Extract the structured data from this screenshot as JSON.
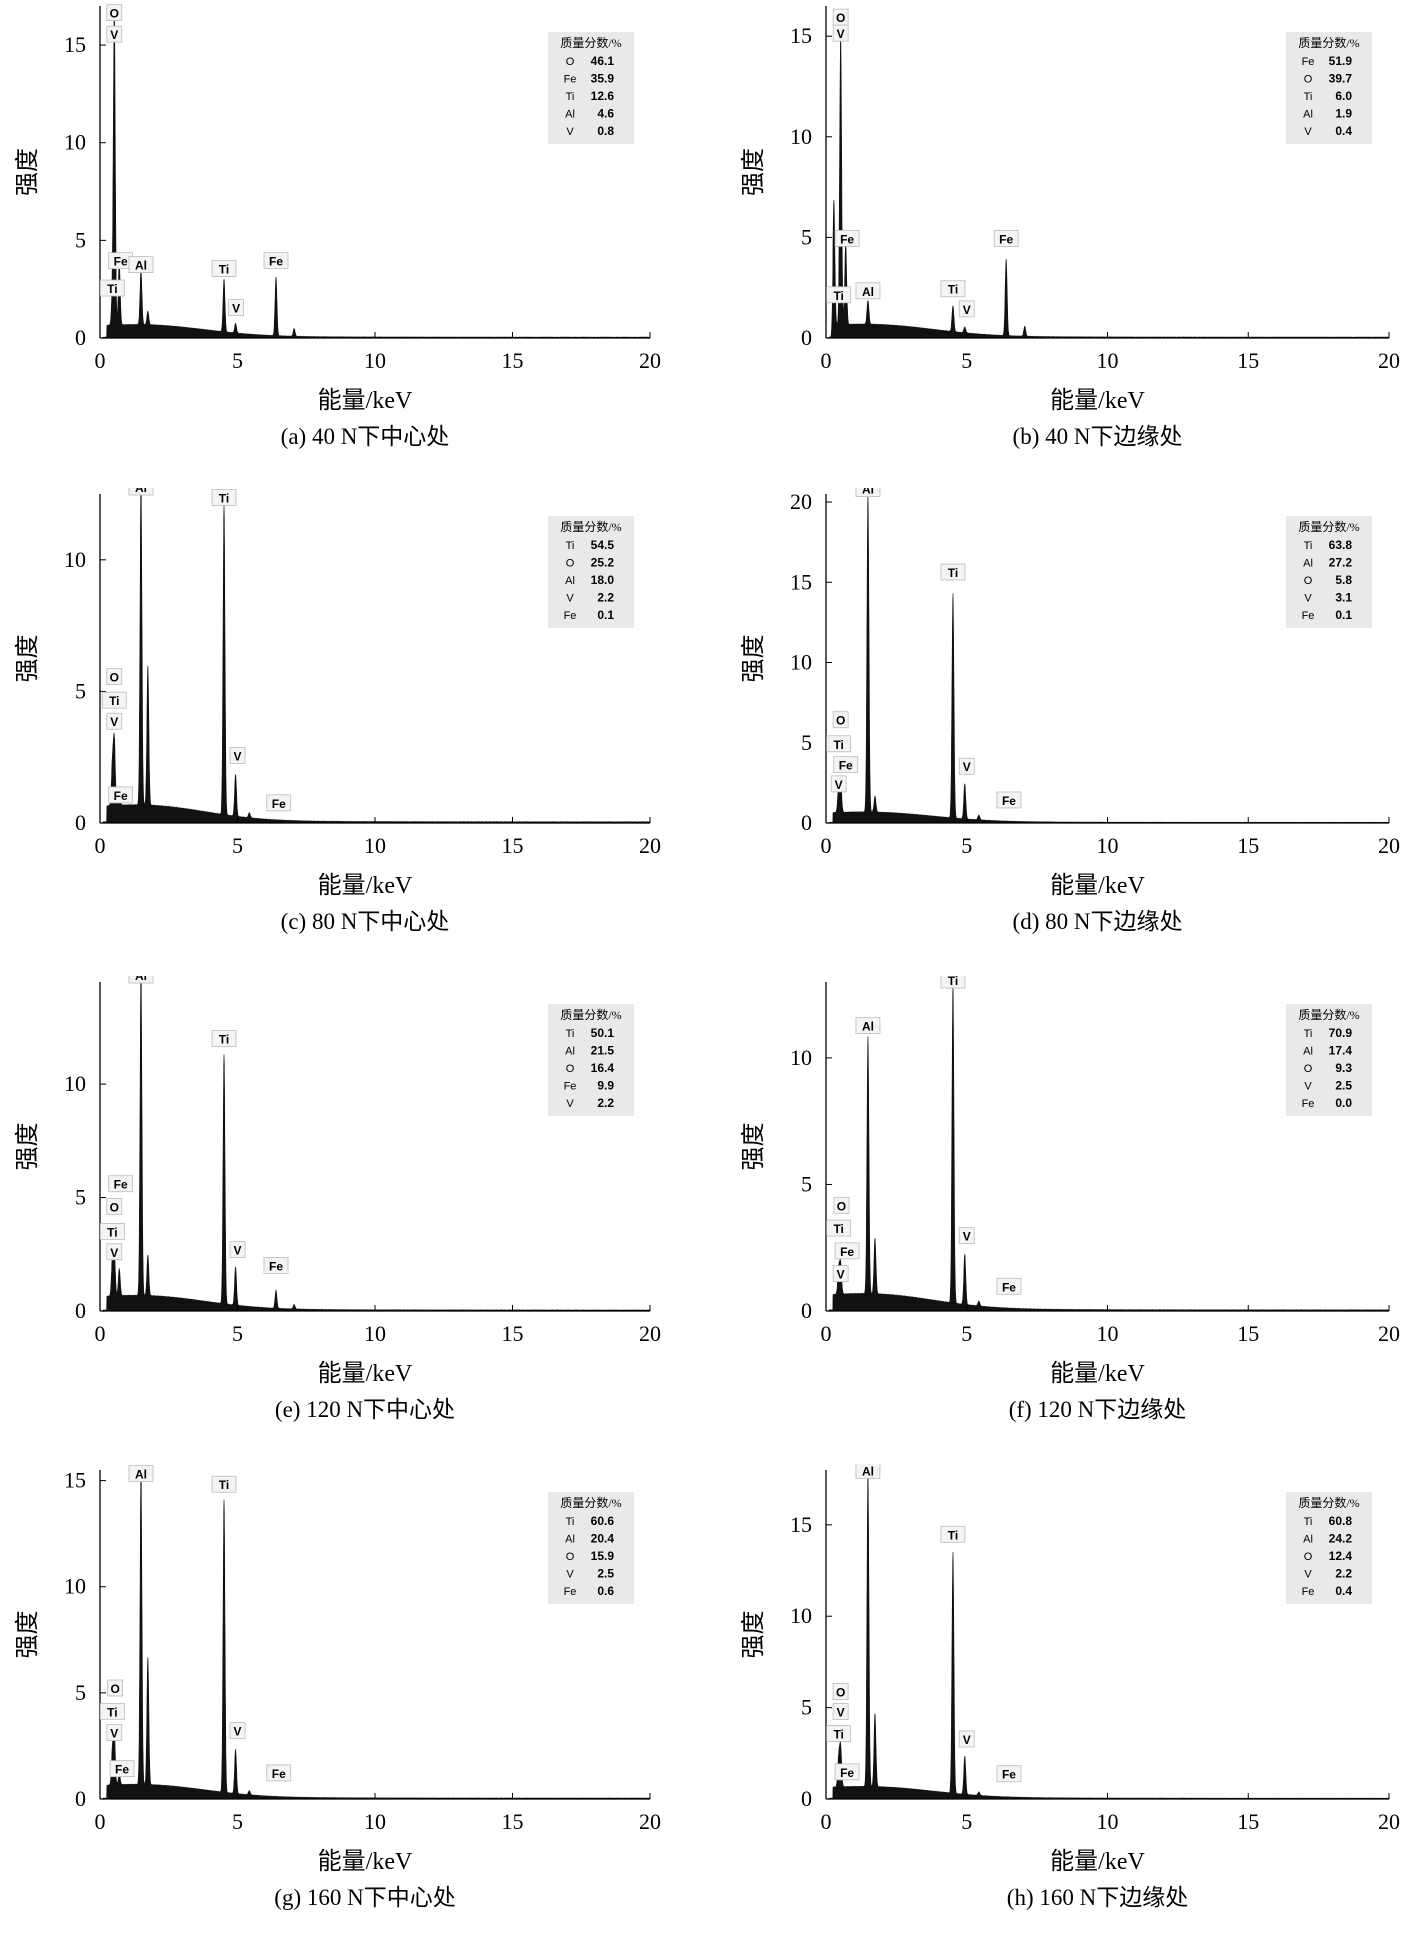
{
  "common": {
    "xlabel": "能量/keV",
    "ylabel": "强度",
    "legend_title": "质量分数/%",
    "xticks": [
      0,
      5,
      10,
      15,
      20
    ],
    "xlim": [
      0,
      20
    ]
  },
  "chart_data": [
    {
      "type": "line",
      "caption": "(a) 40 N下中心处",
      "ylim": [
        0,
        17
      ],
      "yticks": [
        0,
        5,
        10,
        15
      ],
      "peaks": [
        [
          0.45,
          1.5
        ],
        [
          0.52,
          16
        ],
        [
          0.7,
          3.2
        ],
        [
          1.49,
          2.8
        ],
        [
          1.74,
          0.7
        ],
        [
          4.51,
          2.7
        ],
        [
          4.93,
          0.5
        ],
        [
          6.4,
          3.0
        ],
        [
          7.06,
          0.4
        ]
      ],
      "labels": [
        {
          "text": "O",
          "x": 0.52,
          "y": 16.3
        },
        {
          "text": "V",
          "x": 0.52,
          "y": 15.2
        },
        {
          "text": "Fe",
          "x": 0.75,
          "y": 3.6
        },
        {
          "text": "Ti",
          "x": 0.45,
          "y": 2.2
        },
        {
          "text": "Al",
          "x": 1.49,
          "y": 3.4
        },
        {
          "text": "Ti",
          "x": 4.51,
          "y": 3.2
        },
        {
          "text": "V",
          "x": 4.95,
          "y": 1.2
        },
        {
          "text": "Fe",
          "x": 6.4,
          "y": 3.6
        }
      ],
      "legend": [
        [
          "O",
          "46.1"
        ],
        [
          "Fe",
          "35.9"
        ],
        [
          "Ti",
          "12.6"
        ],
        [
          "Al",
          "4.6"
        ],
        [
          "V",
          "0.8"
        ]
      ]
    },
    {
      "type": "line",
      "caption": "(b) 40 N下边缘处",
      "ylim": [
        0,
        16.5
      ],
      "yticks": [
        0,
        5,
        10,
        15
      ],
      "peaks": [
        [
          0.28,
          6.2
        ],
        [
          0.52,
          14.5
        ],
        [
          0.7,
          4.0
        ],
        [
          1.49,
          1.2
        ],
        [
          4.51,
          1.3
        ],
        [
          4.93,
          0.3
        ],
        [
          6.4,
          3.8
        ],
        [
          7.06,
          0.5
        ]
      ],
      "labels": [
        {
          "text": "O",
          "x": 0.52,
          "y": 15.6
        },
        {
          "text": "V",
          "x": 0.52,
          "y": 14.8
        },
        {
          "text": "Fe",
          "x": 0.75,
          "y": 4.6
        },
        {
          "text": "Ti",
          "x": 0.45,
          "y": 1.8
        },
        {
          "text": "Al",
          "x": 1.49,
          "y": 2.0
        },
        {
          "text": "Ti",
          "x": 4.51,
          "y": 2.1
        },
        {
          "text": "V",
          "x": 5.0,
          "y": 1.1
        },
        {
          "text": "Fe",
          "x": 6.4,
          "y": 4.6
        }
      ],
      "legend": [
        [
          "Fe",
          "51.9"
        ],
        [
          "O",
          "39.7"
        ],
        [
          "Ti",
          "6.0"
        ],
        [
          "Al",
          "1.9"
        ],
        [
          "V",
          "0.4"
        ]
      ]
    },
    {
      "type": "line",
      "caption": "(c) 80 N下中心处",
      "ylim": [
        0,
        12.5
      ],
      "yticks": [
        0,
        5,
        10
      ],
      "peaks": [
        [
          0.45,
          1.6
        ],
        [
          0.52,
          2.5
        ],
        [
          0.7,
          0.6
        ],
        [
          1.49,
          12.3
        ],
        [
          1.74,
          5.3
        ],
        [
          4.51,
          11.8
        ],
        [
          4.93,
          1.6
        ],
        [
          5.43,
          0.2
        ]
      ],
      "labels": [
        {
          "text": "Al",
          "x": 1.49,
          "y": 12.5
        },
        {
          "text": "Ti",
          "x": 4.51,
          "y": 12.1
        },
        {
          "text": "O",
          "x": 0.52,
          "y": 5.3
        },
        {
          "text": "Ti",
          "x": 0.52,
          "y": 4.4
        },
        {
          "text": "V",
          "x": 0.52,
          "y": 3.6
        },
        {
          "text": "Fe",
          "x": 0.75,
          "y": 0.8
        },
        {
          "text": "V",
          "x": 5.0,
          "y": 2.3
        },
        {
          "text": "Fe",
          "x": 6.5,
          "y": 0.5
        }
      ],
      "legend": [
        [
          "Ti",
          "54.5"
        ],
        [
          "O",
          "25.2"
        ],
        [
          "Al",
          "18.0"
        ],
        [
          "V",
          "2.2"
        ],
        [
          "Fe",
          "0.1"
        ]
      ]
    },
    {
      "type": "line",
      "caption": "(d) 80 N下边缘处",
      "ylim": [
        0,
        20.5
      ],
      "yticks": [
        0,
        5,
        10,
        15,
        20
      ],
      "peaks": [
        [
          0.45,
          1.6
        ],
        [
          0.52,
          2.0
        ],
        [
          1.49,
          20
        ],
        [
          1.74,
          1.0
        ],
        [
          4.51,
          14
        ],
        [
          4.93,
          2.2
        ],
        [
          5.43,
          0.3
        ]
      ],
      "labels": [
        {
          "text": "Al",
          "x": 1.49,
          "y": 20.4
        },
        {
          "text": "Ti",
          "x": 4.51,
          "y": 15.2
        },
        {
          "text": "O",
          "x": 0.52,
          "y": 6.0
        },
        {
          "text": "Ti",
          "x": 0.45,
          "y": 4.5
        },
        {
          "text": "Fe",
          "x": 0.7,
          "y": 3.2
        },
        {
          "text": "V",
          "x": 0.45,
          "y": 2.0
        },
        {
          "text": "V",
          "x": 5.0,
          "y": 3.1
        },
        {
          "text": "Fe",
          "x": 6.5,
          "y": 1.0
        }
      ],
      "legend": [
        [
          "Ti",
          "63.8"
        ],
        [
          "Al",
          "27.2"
        ],
        [
          "O",
          "5.8"
        ],
        [
          "V",
          "3.1"
        ],
        [
          "Fe",
          "0.1"
        ]
      ]
    },
    {
      "type": "line",
      "caption": "(e) 120 N下中心处",
      "ylim": [
        0,
        14.5
      ],
      "yticks": [
        0,
        5,
        10
      ],
      "peaks": [
        [
          0.45,
          1.6
        ],
        [
          0.52,
          2.0
        ],
        [
          0.7,
          1.2
        ],
        [
          1.49,
          14.3
        ],
        [
          1.74,
          1.8
        ],
        [
          4.51,
          11
        ],
        [
          4.93,
          1.7
        ],
        [
          6.4,
          0.8
        ],
        [
          7.06,
          0.2
        ]
      ],
      "labels": [
        {
          "text": "Al",
          "x": 1.49,
          "y": 14.5
        },
        {
          "text": "Ti",
          "x": 4.51,
          "y": 11.7
        },
        {
          "text": "Fe",
          "x": 0.75,
          "y": 5.3
        },
        {
          "text": "O",
          "x": 0.52,
          "y": 4.3
        },
        {
          "text": "Ti",
          "x": 0.45,
          "y": 3.2
        },
        {
          "text": "V",
          "x": 0.52,
          "y": 2.3
        },
        {
          "text": "V",
          "x": 5.0,
          "y": 2.4
        },
        {
          "text": "Fe",
          "x": 6.4,
          "y": 1.7
        }
      ],
      "legend": [
        [
          "Ti",
          "50.1"
        ],
        [
          "Al",
          "21.5"
        ],
        [
          "O",
          "16.4"
        ],
        [
          "Fe",
          "9.9"
        ],
        [
          "V",
          "2.2"
        ]
      ]
    },
    {
      "type": "line",
      "caption": "(f) 120 N下边缘处",
      "ylim": [
        0,
        13
      ],
      "yticks": [
        0,
        5,
        10
      ],
      "peaks": [
        [
          0.45,
          1.0
        ],
        [
          0.52,
          1.2
        ],
        [
          1.49,
          10.2
        ],
        [
          1.74,
          2.2
        ],
        [
          4.51,
          12.7
        ],
        [
          4.93,
          2.0
        ],
        [
          5.43,
          0.2
        ]
      ],
      "labels": [
        {
          "text": "Ti",
          "x": 4.51,
          "y": 12.8
        },
        {
          "text": "Al",
          "x": 1.49,
          "y": 11.0
        },
        {
          "text": "O",
          "x": 0.55,
          "y": 3.9
        },
        {
          "text": "Ti",
          "x": 0.45,
          "y": 3.0
        },
        {
          "text": "Fe",
          "x": 0.75,
          "y": 2.1
        },
        {
          "text": "V",
          "x": 0.52,
          "y": 1.2
        },
        {
          "text": "V",
          "x": 5.0,
          "y": 2.7
        },
        {
          "text": "Fe",
          "x": 6.5,
          "y": 0.7
        }
      ],
      "legend": [
        [
          "Ti",
          "70.9"
        ],
        [
          "Al",
          "17.4"
        ],
        [
          "O",
          "9.3"
        ],
        [
          "V",
          "2.5"
        ],
        [
          "Fe",
          "0.0"
        ]
      ]
    },
    {
      "type": "line",
      "caption": "(g) 160 N下中心处",
      "ylim": [
        0,
        15.5
      ],
      "yticks": [
        0,
        5,
        10,
        15
      ],
      "peaks": [
        [
          0.45,
          1.6
        ],
        [
          0.52,
          2.5
        ],
        [
          0.7,
          0.5
        ],
        [
          1.49,
          14.8
        ],
        [
          1.74,
          6.0
        ],
        [
          4.51,
          13.8
        ],
        [
          4.93,
          2.1
        ],
        [
          5.43,
          0.2
        ]
      ],
      "labels": [
        {
          "text": "Al",
          "x": 1.49,
          "y": 15.0
        },
        {
          "text": "Ti",
          "x": 4.51,
          "y": 14.5
        },
        {
          "text": "O",
          "x": 0.55,
          "y": 4.9
        },
        {
          "text": "Ti",
          "x": 0.45,
          "y": 3.8
        },
        {
          "text": "V",
          "x": 0.52,
          "y": 2.8
        },
        {
          "text": "Fe",
          "x": 0.8,
          "y": 1.1
        },
        {
          "text": "V",
          "x": 5.0,
          "y": 2.9
        },
        {
          "text": "Fe",
          "x": 6.5,
          "y": 0.9
        }
      ],
      "legend": [
        [
          "Ti",
          "60.6"
        ],
        [
          "Al",
          "20.4"
        ],
        [
          "O",
          "15.9"
        ],
        [
          "V",
          "2.5"
        ],
        [
          "Fe",
          "0.6"
        ]
      ]
    },
    {
      "type": "line",
      "caption": "(h) 160 N下边缘处",
      "ylim": [
        0,
        18
      ],
      "yticks": [
        0,
        5,
        10,
        15
      ],
      "peaks": [
        [
          0.45,
          1.6
        ],
        [
          0.52,
          2.2
        ],
        [
          1.49,
          17.3
        ],
        [
          1.74,
          4.0
        ],
        [
          4.51,
          13.2
        ],
        [
          4.93,
          2.1
        ],
        [
          5.43,
          0.2
        ]
      ],
      "labels": [
        {
          "text": "Al",
          "x": 1.49,
          "y": 17.6
        },
        {
          "text": "Ti",
          "x": 4.51,
          "y": 14.1
        },
        {
          "text": "O",
          "x": 0.52,
          "y": 5.5
        },
        {
          "text": "V",
          "x": 0.52,
          "y": 4.4
        },
        {
          "text": "Ti",
          "x": 0.45,
          "y": 3.2
        },
        {
          "text": "Fe",
          "x": 0.75,
          "y": 1.1
        },
        {
          "text": "V",
          "x": 5.0,
          "y": 2.9
        },
        {
          "text": "Fe",
          "x": 6.5,
          "y": 1.0
        }
      ],
      "legend": [
        [
          "Ti",
          "60.8"
        ],
        [
          "Al",
          "24.2"
        ],
        [
          "O",
          "12.4"
        ],
        [
          "V",
          "2.2"
        ],
        [
          "Fe",
          "0.4"
        ]
      ]
    }
  ]
}
